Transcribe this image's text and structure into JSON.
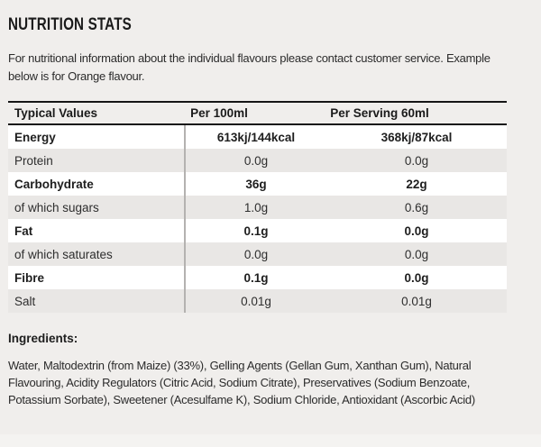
{
  "page": {
    "title": "NUTRITION STATS",
    "intro_lines": [
      "For nutritional information about the individual flavours please contact customer service. Example",
      "below is for Orange flavour."
    ]
  },
  "nutrition_table": {
    "columns": [
      "Typical Values",
      "Per 100ml",
      "Per Serving 60ml"
    ],
    "rows": [
      {
        "label": "Energy",
        "per_100ml": "613kj/144kcal",
        "per_serving": "368kj/87kcal"
      },
      {
        "label": "Protein",
        "per_100ml": "0.0g",
        "per_serving": "0.0g"
      },
      {
        "label": "Carbohydrate",
        "per_100ml": "36g",
        "per_serving": "22g"
      },
      {
        "label": "of which sugars",
        "per_100ml": "1.0g",
        "per_serving": "0.6g"
      },
      {
        "label": "Fat",
        "per_100ml": "0.1g",
        "per_serving": "0.0g"
      },
      {
        "label": "of which saturates",
        "per_100ml": "0.0g",
        "per_serving": "0.0g"
      },
      {
        "label": "Fibre",
        "per_100ml": "0.1g",
        "per_serving": "0.0g"
      },
      {
        "label": "Salt",
        "per_100ml": "0.01g",
        "per_serving": "0.01g"
      }
    ]
  },
  "ingredients": {
    "heading": "Ingredients:",
    "lines": [
      "Water, Maltodextrin (from Maize) (33%), Gelling Agents (Gellan Gum, Xanthan Gum), Natural",
      "Flavouring, Acidity Regulators (Citric Acid, Sodium Citrate), Preservatives (Sodium Benzoate,",
      "Potassium Sorbate), Sweetener (Acesulfame K), Sodium Chloride, Antioxidant (Ascorbic Acid)"
    ]
  },
  "colors": {
    "page_background": "#f0eeec",
    "row_white": "#ffffff",
    "row_gray": "#e9e7e5",
    "table_border_dark": "#161616",
    "column_divider": "#b4b2b0",
    "text_primary": "#1e1e1e",
    "text_secondary": "#2b2b2b"
  }
}
